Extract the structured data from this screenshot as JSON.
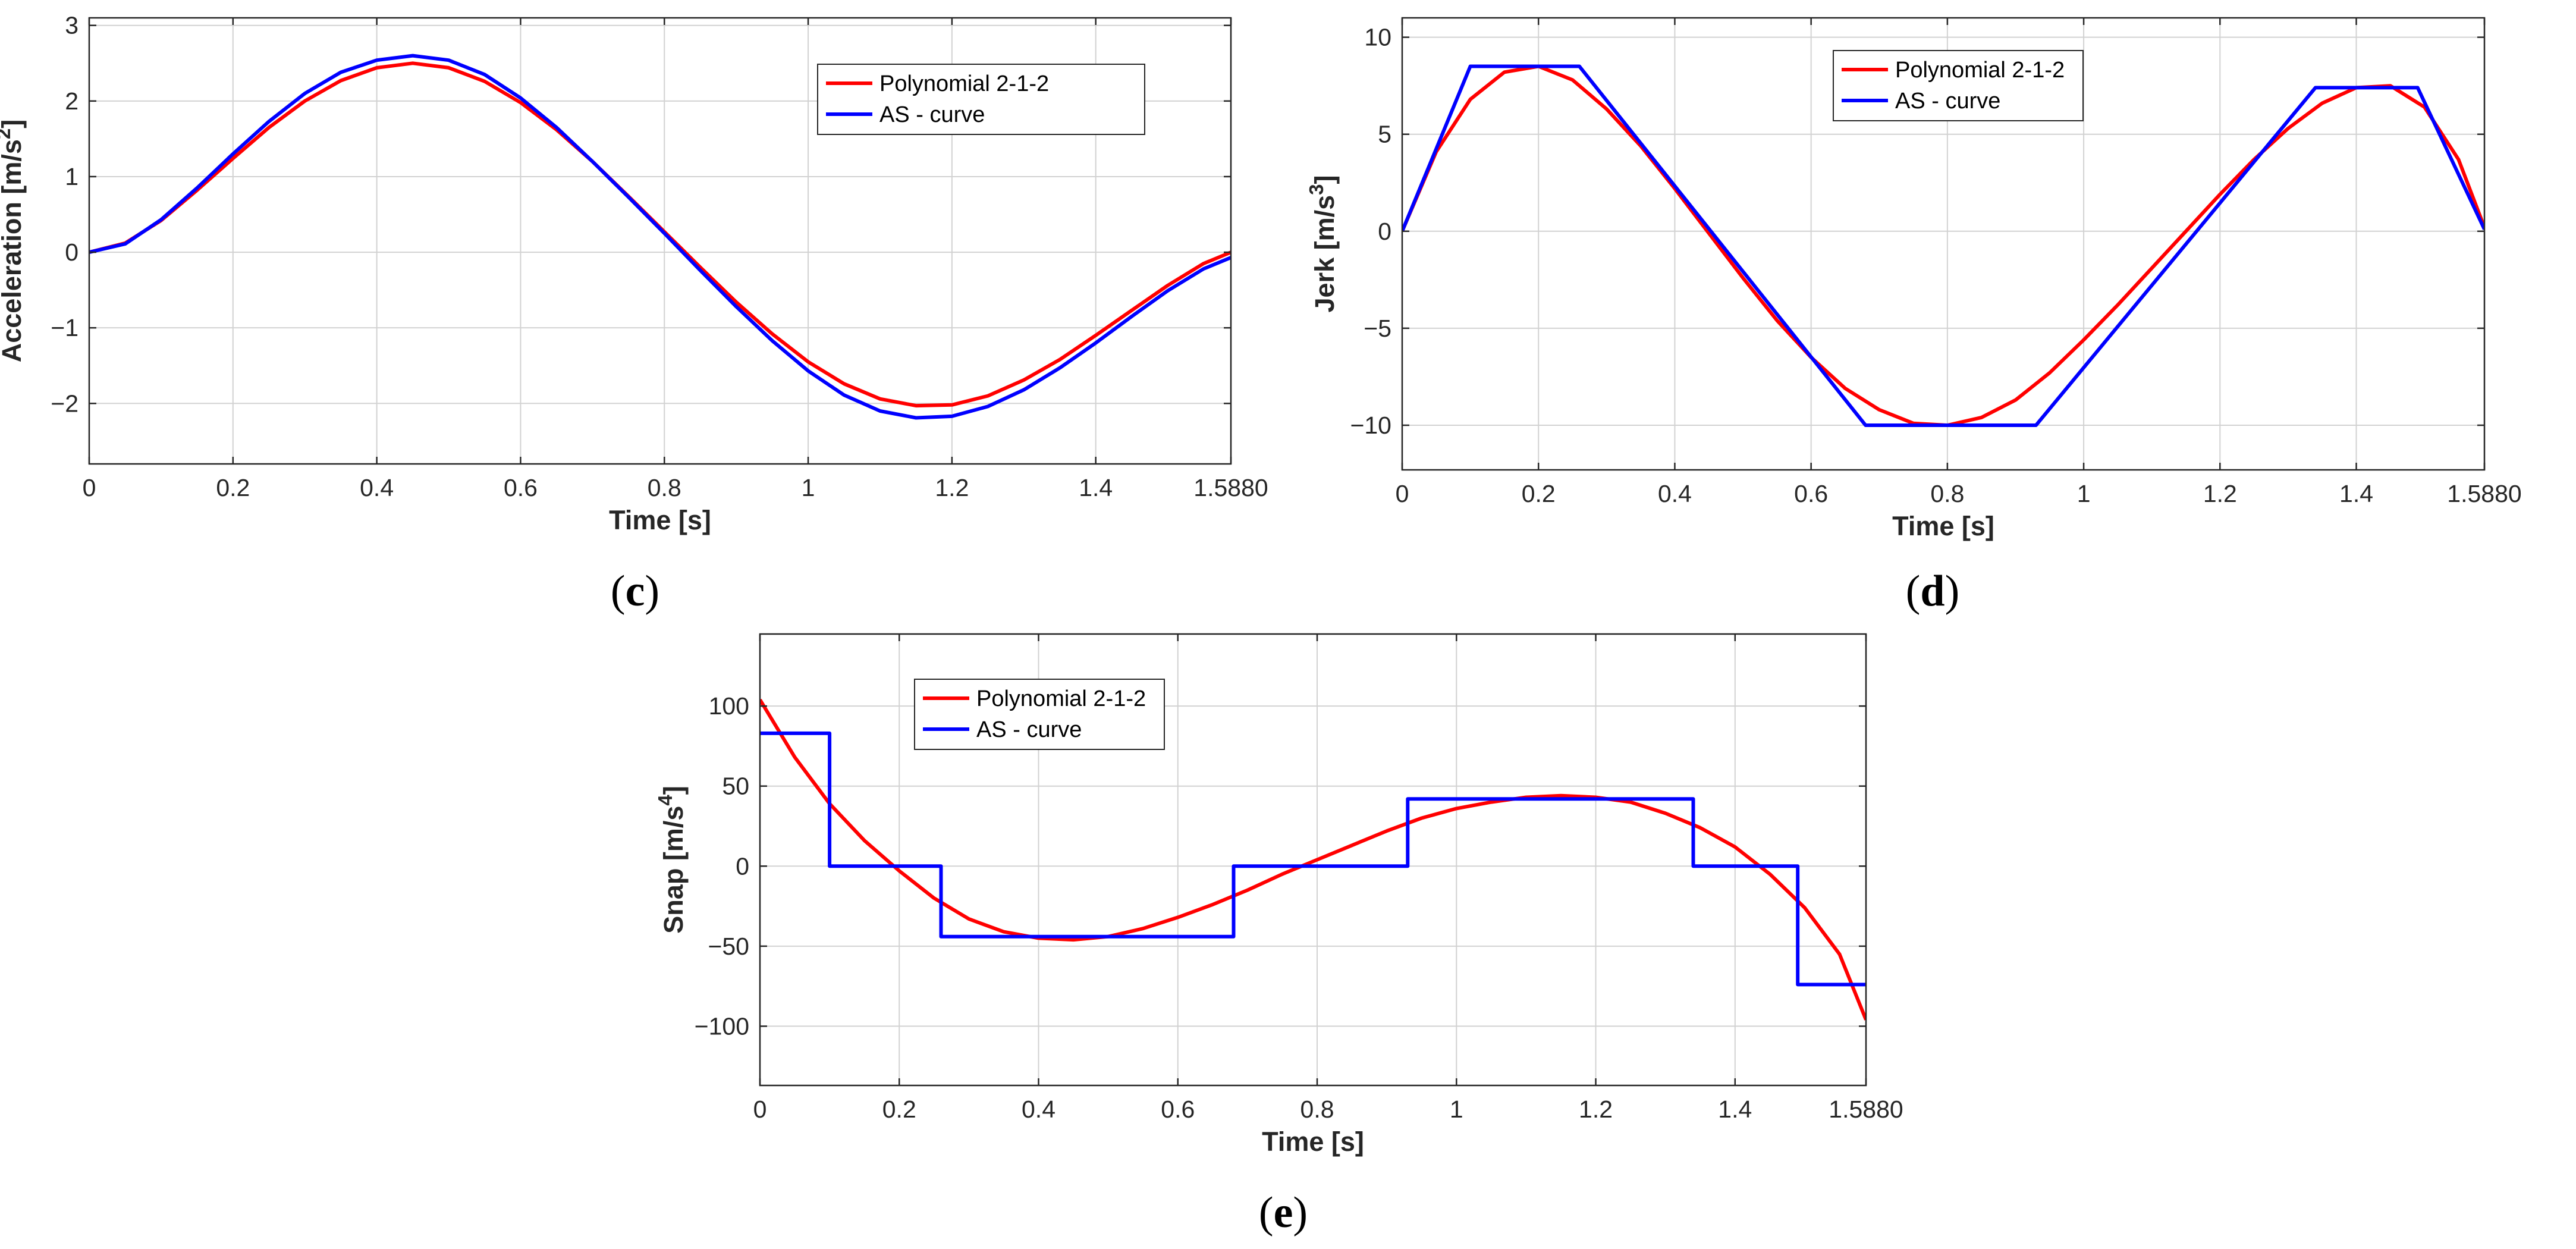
{
  "figure": {
    "colors": {
      "polynomial": "#ff0000",
      "as_curve": "#0000ff"
    }
  },
  "chart_data": [
    {
      "id": "c",
      "panel_label_parts": [
        "(",
        "c",
        ")"
      ],
      "type": "line",
      "xlabel": "Time [s]",
      "ylabel": "Acceleration [m/s",
      "ylabel_sup": "2",
      "ylabel_close": "]",
      "xlim": [
        0,
        1.588
      ],
      "ylim": [
        -2.8,
        3.1
      ],
      "xticks": [
        0,
        0.2,
        0.4,
        0.6,
        0.8,
        1,
        1.2,
        1.4,
        1.588
      ],
      "xtick_labels": [
        "0",
        "0.2",
        "0.4",
        "0.6",
        "0.8",
        "1",
        "1.2",
        "1.4",
        "1.5880"
      ],
      "yticks": [
        -2,
        -1,
        0,
        1,
        2,
        3
      ],
      "ytick_labels": [
        "−2",
        "−1",
        "0",
        "1",
        "2",
        "3"
      ],
      "grid": true,
      "legend_position": "top-right",
      "series": [
        {
          "name": "Polynomial 2-1-2",
          "color": "#ff0000",
          "x": [
            0,
            0.05,
            0.1,
            0.15,
            0.2,
            0.25,
            0.3,
            0.35,
            0.4,
            0.45,
            0.5,
            0.55,
            0.6,
            0.65,
            0.7,
            0.75,
            0.8,
            0.85,
            0.9,
            0.95,
            1.0,
            1.05,
            1.1,
            1.15,
            1.2,
            1.25,
            1.3,
            1.35,
            1.4,
            1.45,
            1.5,
            1.55,
            1.588
          ],
          "y": [
            0,
            0.12,
            0.42,
            0.82,
            1.24,
            1.65,
            2.0,
            2.27,
            2.44,
            2.5,
            2.44,
            2.26,
            1.98,
            1.62,
            1.2,
            0.74,
            0.27,
            -0.2,
            -0.66,
            -1.08,
            -1.45,
            -1.74,
            -1.94,
            -2.03,
            -2.02,
            -1.9,
            -1.69,
            -1.42,
            -1.1,
            -0.77,
            -0.44,
            -0.15,
            0
          ]
        },
        {
          "name": "AS - curve",
          "color": "#0000ff",
          "x": [
            0,
            0.05,
            0.1,
            0.15,
            0.2,
            0.25,
            0.3,
            0.35,
            0.4,
            0.45,
            0.5,
            0.55,
            0.6,
            0.65,
            0.7,
            0.75,
            0.8,
            0.85,
            0.9,
            0.95,
            1.0,
            1.05,
            1.1,
            1.15,
            1.2,
            1.25,
            1.3,
            1.35,
            1.4,
            1.45,
            1.5,
            1.55,
            1.588
          ],
          "y": [
            0,
            0.11,
            0.43,
            0.85,
            1.3,
            1.73,
            2.1,
            2.38,
            2.54,
            2.6,
            2.54,
            2.35,
            2.04,
            1.65,
            1.2,
            0.73,
            0.25,
            -0.24,
            -0.72,
            -1.17,
            -1.57,
            -1.89,
            -2.1,
            -2.19,
            -2.17,
            -2.04,
            -1.82,
            -1.53,
            -1.2,
            -0.85,
            -0.51,
            -0.22,
            -0.07
          ]
        }
      ]
    },
    {
      "id": "d",
      "panel_label_parts": [
        "(",
        "d",
        ")"
      ],
      "type": "line",
      "xlabel": "Time [s]",
      "ylabel": "Jerk [m/s",
      "ylabel_sup": "3",
      "ylabel_close": "]",
      "xlim": [
        0,
        1.588
      ],
      "ylim": [
        -12.3,
        11
      ],
      "xticks": [
        0,
        0.2,
        0.4,
        0.6,
        0.8,
        1,
        1.2,
        1.4,
        1.588
      ],
      "xtick_labels": [
        "0",
        "0.2",
        "0.4",
        "0.6",
        "0.8",
        "1",
        "1.2",
        "1.4",
        "1.5880"
      ],
      "yticks": [
        -10,
        -5,
        0,
        5,
        10
      ],
      "ytick_labels": [
        "−10",
        "−5",
        "0",
        "5",
        "10"
      ],
      "grid": true,
      "legend_position": "top",
      "series": [
        {
          "name": "Polynomial 2-1-2",
          "color": "#ff0000",
          "x": [
            0,
            0.05,
            0.1,
            0.15,
            0.2,
            0.25,
            0.3,
            0.35,
            0.4,
            0.45,
            0.5,
            0.55,
            0.6,
            0.65,
            0.7,
            0.75,
            0.8,
            0.85,
            0.9,
            0.95,
            1.0,
            1.05,
            1.1,
            1.15,
            1.2,
            1.25,
            1.3,
            1.35,
            1.4,
            1.45,
            1.5,
            1.55,
            1.588
          ],
          "y": [
            0,
            4.1,
            6.8,
            8.2,
            8.5,
            7.8,
            6.3,
            4.4,
            2.2,
            -0.1,
            -2.4,
            -4.6,
            -6.5,
            -8.1,
            -9.2,
            -9.9,
            -10.0,
            -9.6,
            -8.7,
            -7.3,
            -5.6,
            -3.8,
            -1.9,
            0,
            1.9,
            3.7,
            5.3,
            6.6,
            7.4,
            7.5,
            6.4,
            3.7,
            0.2
          ]
        },
        {
          "name": "AS - curve",
          "color": "#0000ff",
          "x": [
            0,
            0.1,
            0.26,
            0.68,
            0.93,
            1.34,
            1.49,
            1.588
          ],
          "y": [
            0,
            8.5,
            8.5,
            -10,
            -10,
            7.4,
            7.4,
            0.1
          ]
        }
      ]
    },
    {
      "id": "e",
      "panel_label_parts": [
        "(",
        "e",
        ")"
      ],
      "type": "line",
      "xlabel": "Time [s]",
      "ylabel": "Snap [m/s",
      "ylabel_sup": "4",
      "ylabel_close": "]",
      "xlim": [
        0,
        1.588
      ],
      "ylim": [
        -137,
        145
      ],
      "xticks": [
        0,
        0.2,
        0.4,
        0.6,
        0.8,
        1,
        1.2,
        1.4,
        1.588
      ],
      "xtick_labels": [
        "0",
        "0.2",
        "0.4",
        "0.6",
        "0.8",
        "1",
        "1.2",
        "1.4",
        "1.5880"
      ],
      "yticks": [
        -100,
        -50,
        0,
        50,
        100
      ],
      "ytick_labels": [
        "−100",
        "−50",
        "0",
        "50",
        "100"
      ],
      "grid": true,
      "legend_position": "top-left",
      "series": [
        {
          "name": "Polynomial 2-1-2",
          "color": "#ff0000",
          "x": [
            0,
            0.05,
            0.1,
            0.15,
            0.2,
            0.25,
            0.3,
            0.35,
            0.4,
            0.45,
            0.5,
            0.55,
            0.6,
            0.65,
            0.7,
            0.75,
            0.8,
            0.85,
            0.9,
            0.95,
            1.0,
            1.05,
            1.1,
            1.15,
            1.2,
            1.25,
            1.3,
            1.35,
            1.4,
            1.45,
            1.5,
            1.55,
            1.588
          ],
          "y": [
            104,
            68,
            39,
            16,
            -3,
            -20,
            -33,
            -41,
            -45,
            -46,
            -44,
            -39,
            -32,
            -24,
            -15,
            -5,
            4,
            13,
            22,
            30,
            36,
            40,
            43,
            44,
            43,
            40,
            33,
            24,
            12,
            -5,
            -26,
            -55,
            -96
          ]
        },
        {
          "name": "AS - curve",
          "color": "#0000ff",
          "x": [
            0,
            0.1,
            0.1,
            0.26,
            0.26,
            0.68,
            0.68,
            0.93,
            0.93,
            1.34,
            1.34,
            1.49,
            1.49,
            1.588
          ],
          "y": [
            83,
            83,
            0,
            0,
            -44,
            -44,
            0,
            0,
            42,
            42,
            0,
            0,
            -74,
            -74
          ]
        }
      ]
    }
  ]
}
